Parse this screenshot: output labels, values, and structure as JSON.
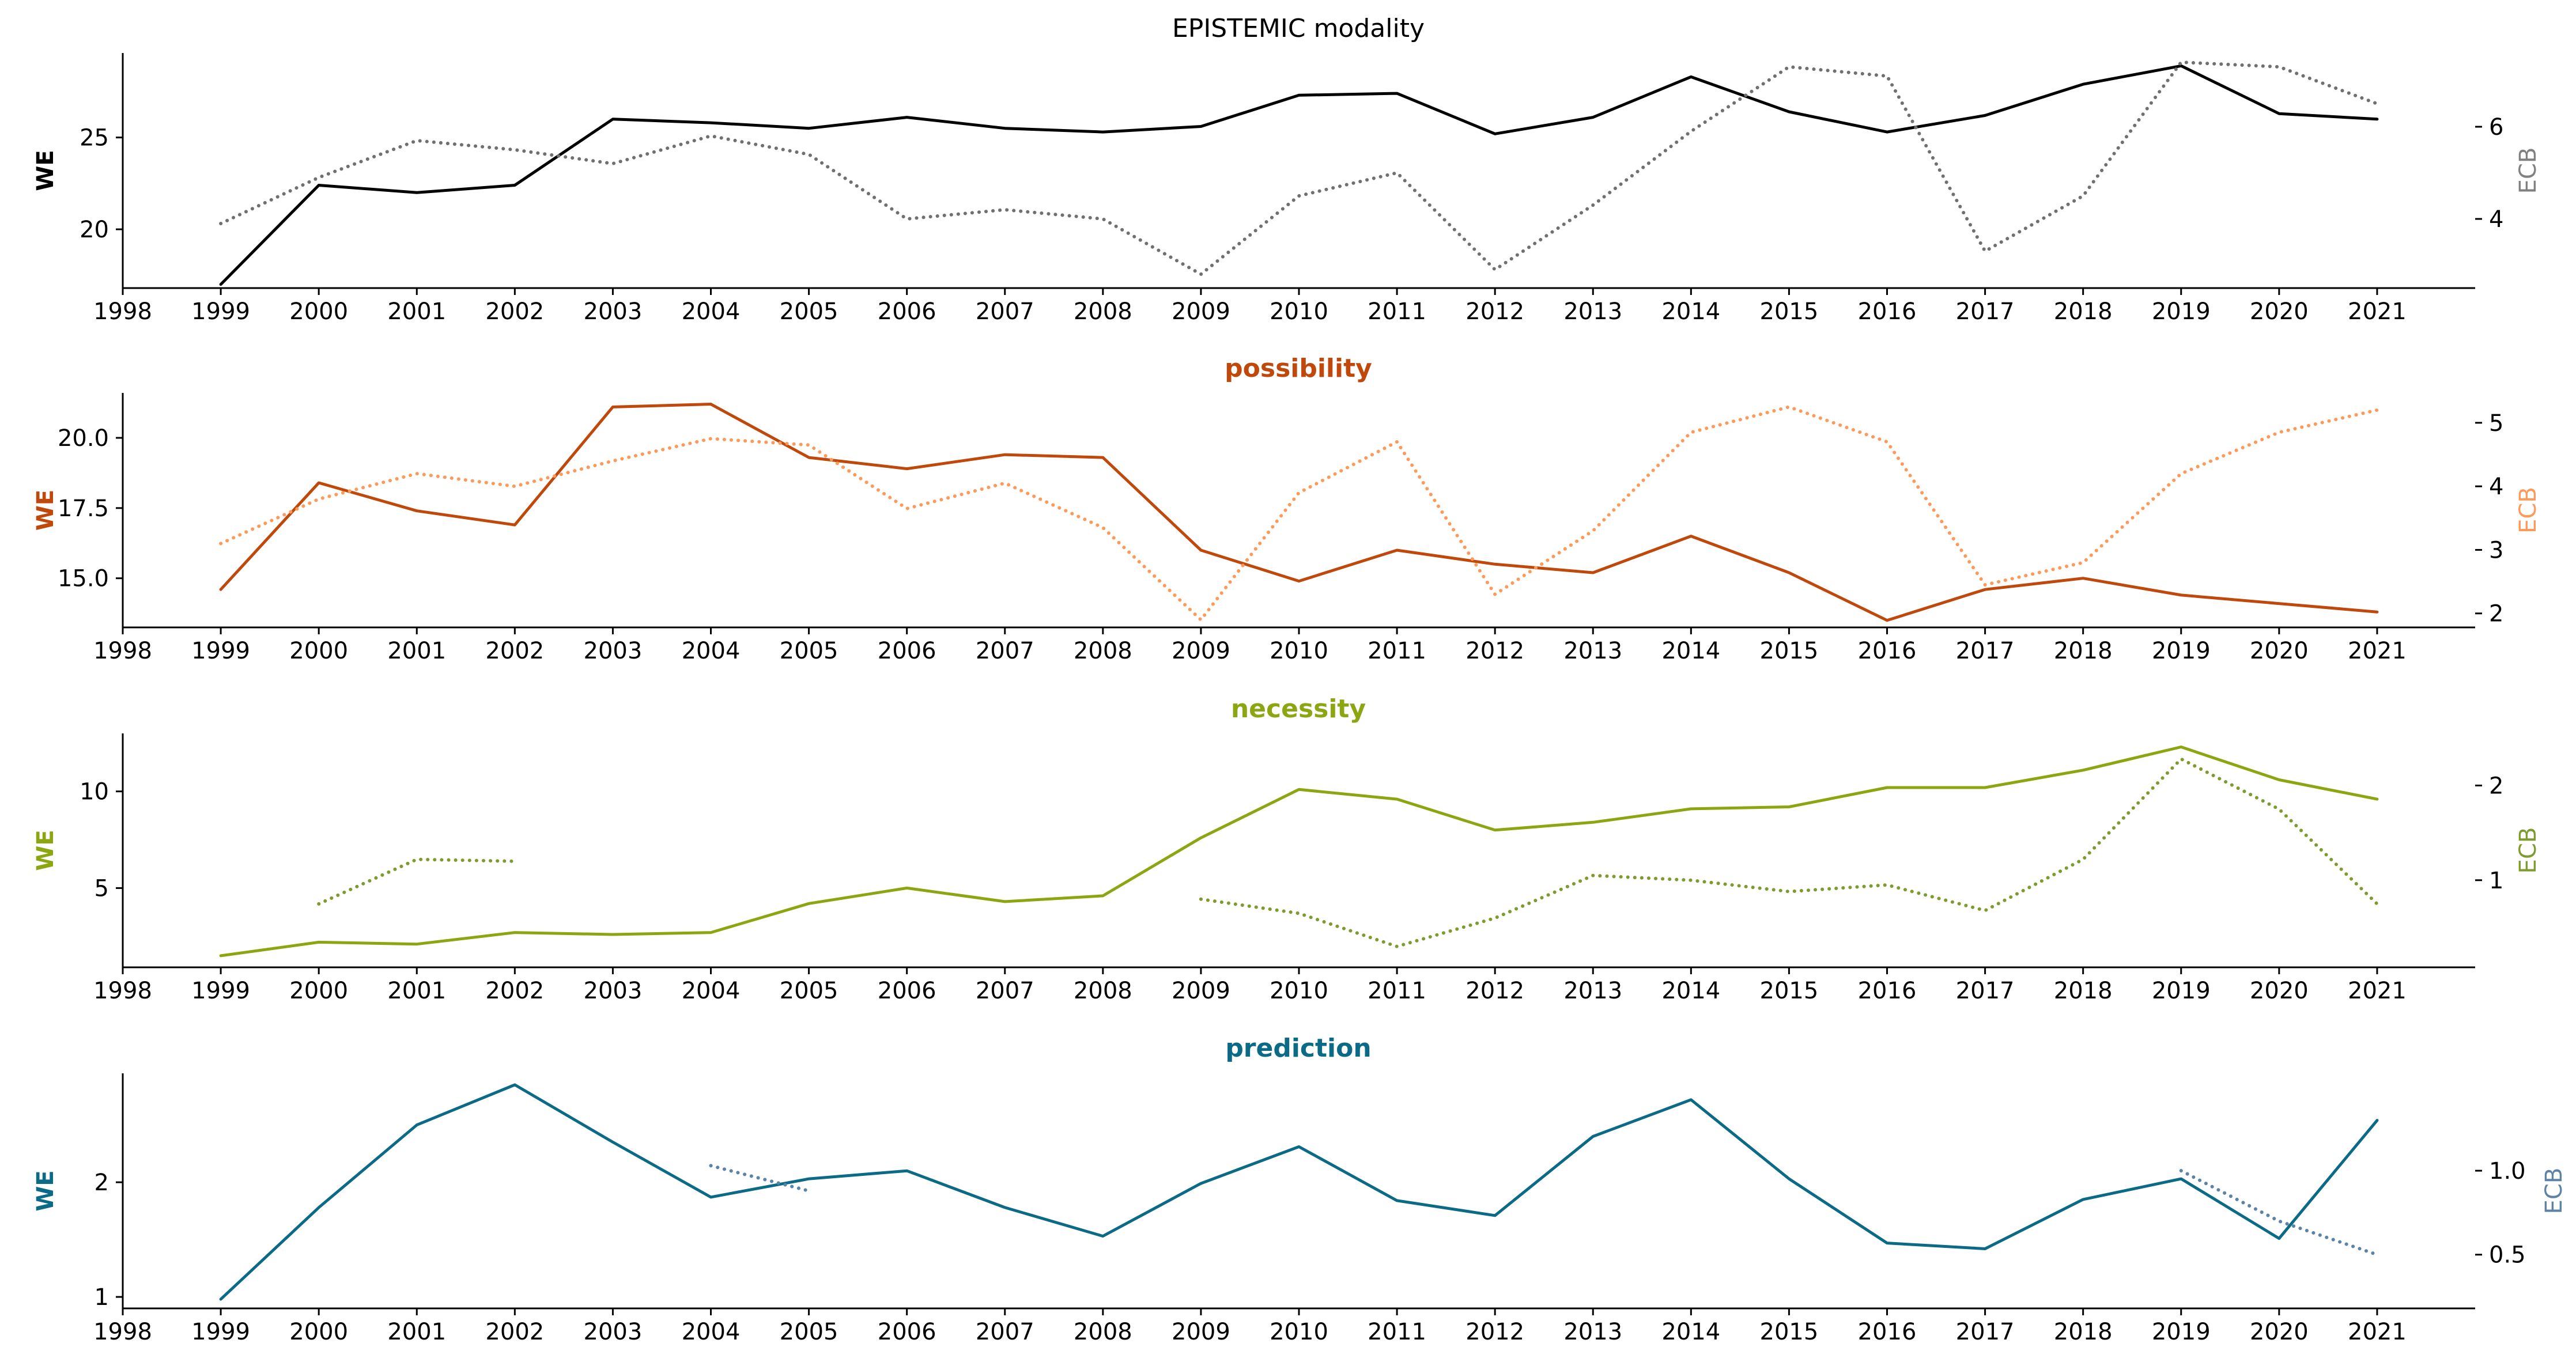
{
  "figure_title": "EPISTEMIC modality",
  "x_years": [
    "1998",
    "1999",
    "2000",
    "2001",
    "2002",
    "2003",
    "2004",
    "2005",
    "2006",
    "2007",
    "2008",
    "2009",
    "2010",
    "2011",
    "2012",
    "2013",
    "2014",
    "2015",
    "2016",
    "2017",
    "2018",
    "2019",
    "2020",
    "2021"
  ],
  "chart_data": [
    {
      "type": "line",
      "title": "EPISTEMIC modality",
      "xlabel": "",
      "ylabel": "WE",
      "y2label": "ECB",
      "x": [
        1999,
        2000,
        2001,
        2002,
        2003,
        2004,
        2005,
        2006,
        2007,
        2008,
        2009,
        2010,
        2011,
        2012,
        2013,
        2014,
        2015,
        2016,
        2017,
        2018,
        2019,
        2020,
        2021
      ],
      "xlim": [
        1998,
        2022
      ],
      "ylim": [
        16.8,
        29.6
      ],
      "y2lim": [
        2.5,
        7.6
      ],
      "yticks": [
        20,
        25
      ],
      "y2ticks": [
        4,
        6
      ],
      "colors": {
        "we": "#000000",
        "ecb": "#707070",
        "title": "#000000",
        "ylabel": "#000000",
        "y2label": "#808080"
      },
      "title_bold": false,
      "series": [
        {
          "name": "WE",
          "axis": "left",
          "style": "solid",
          "values": [
            17.0,
            22.4,
            22.0,
            22.4,
            26.0,
            25.8,
            25.5,
            26.1,
            25.5,
            25.3,
            25.6,
            27.3,
            27.4,
            25.2,
            26.1,
            28.3,
            26.4,
            25.3,
            26.2,
            27.9,
            28.9,
            26.3,
            26.0
          ]
        },
        {
          "name": "ECB",
          "axis": "right",
          "style": "dotted",
          "values": [
            3.9,
            4.9,
            5.7,
            5.5,
            5.2,
            5.8,
            5.4,
            4.0,
            4.2,
            4.0,
            2.8,
            4.5,
            5.0,
            2.9,
            4.3,
            5.9,
            7.3,
            7.1,
            3.3,
            4.5,
            7.4,
            7.3,
            6.5
          ]
        }
      ]
    },
    {
      "type": "line",
      "title": "possibility",
      "xlabel": "",
      "ylabel": "WE",
      "y2label": "ECB",
      "x": [
        1999,
        2000,
        2001,
        2002,
        2003,
        2004,
        2005,
        2006,
        2007,
        2008,
        2009,
        2010,
        2011,
        2012,
        2013,
        2014,
        2015,
        2016,
        2017,
        2018,
        2019,
        2020,
        2021
      ],
      "xlim": [
        1998,
        2022
      ],
      "ylim": [
        13.25,
        21.6
      ],
      "y2lim": [
        1.78,
        5.47
      ],
      "yticks": [
        15.0,
        17.5,
        20.0
      ],
      "y2ticks": [
        2,
        3,
        4,
        5
      ],
      "colors": {
        "we": "#c0480a",
        "ecb": "#fd9a5a",
        "title": "#c0480a",
        "ylabel": "#c0480a",
        "y2label": "#fd9a5a"
      },
      "title_bold": true,
      "series": [
        {
          "name": "WE",
          "axis": "left",
          "style": "solid",
          "values": [
            14.6,
            18.4,
            17.4,
            16.9,
            21.1,
            21.2,
            19.3,
            18.9,
            19.4,
            19.3,
            16.0,
            14.9,
            16.0,
            15.5,
            15.2,
            16.5,
            15.2,
            13.5,
            14.6,
            15.0,
            14.4,
            14.1,
            13.8
          ]
        },
        {
          "name": "ECB",
          "axis": "right",
          "style": "dotted",
          "values": [
            3.1,
            3.8,
            4.2,
            4.0,
            4.4,
            4.75,
            4.65,
            3.65,
            4.05,
            3.35,
            1.9,
            3.9,
            4.7,
            2.3,
            3.3,
            4.85,
            5.25,
            4.7,
            2.45,
            2.8,
            4.2,
            4.85,
            5.2
          ]
        }
      ]
    },
    {
      "type": "line",
      "title": "necessity",
      "xlabel": "",
      "ylabel": "WE",
      "y2label": "ECB",
      "x": [
        1999,
        2000,
        2001,
        2002,
        2003,
        2004,
        2005,
        2006,
        2007,
        2008,
        2009,
        2010,
        2011,
        2012,
        2013,
        2014,
        2015,
        2016,
        2017,
        2018,
        2019,
        2020,
        2021
      ],
      "xlim": [
        1998,
        2022
      ],
      "ylim": [
        0.9,
        13.0
      ],
      "y2lim": [
        0.08,
        2.55
      ],
      "yticks": [
        5,
        10
      ],
      "y2ticks": [
        1,
        2
      ],
      "colors": {
        "we": "#8ca612",
        "ecb": "#7e9b2e",
        "title": "#8ca612",
        "ylabel": "#8ca612",
        "y2label": "#7e9b2e"
      },
      "title_bold": true,
      "series": [
        {
          "name": "WE",
          "axis": "left",
          "style": "solid",
          "values": [
            1.5,
            2.2,
            2.1,
            2.7,
            2.6,
            2.7,
            4.2,
            5.0,
            4.3,
            4.6,
            7.6,
            10.1,
            9.6,
            8.0,
            8.4,
            9.1,
            9.2,
            10.2,
            10.2,
            11.1,
            12.3,
            10.6,
            9.6
          ]
        },
        {
          "name": "ECB",
          "axis": "right",
          "style": "dotted",
          "values": [
            null,
            0.75,
            1.22,
            1.2,
            null,
            null,
            null,
            null,
            null,
            null,
            0.8,
            0.65,
            0.3,
            0.6,
            1.05,
            1.0,
            0.88,
            0.95,
            0.68,
            1.22,
            2.28,
            1.75,
            0.75
          ]
        }
      ]
    },
    {
      "type": "line",
      "title": "prediction",
      "xlabel": "",
      "ylabel": "WE",
      "y2label": "ECB",
      "x": [
        1999,
        2000,
        2001,
        2002,
        2003,
        2004,
        2005,
        2006,
        2007,
        2008,
        2009,
        2010,
        2011,
        2012,
        2013,
        2014,
        2015,
        2016,
        2017,
        2018,
        2019,
        2020,
        2021
      ],
      "xlim": [
        1998,
        2022
      ],
      "ylim": [
        0.9,
        2.95
      ],
      "y2lim": [
        0.18,
        1.58
      ],
      "yticks": [
        1,
        2
      ],
      "y2ticks": [
        0.5,
        1.0
      ],
      "colors": {
        "we": "#0b6a86",
        "ecb": "#5b83a8",
        "title": "#0b6a86",
        "ylabel": "#0b6a86",
        "y2label": "#5b83a8"
      },
      "title_bold": true,
      "series": [
        {
          "name": "WE",
          "axis": "left",
          "style": "solid",
          "values": [
            0.98,
            1.78,
            2.5,
            2.85,
            2.35,
            1.87,
            2.03,
            2.1,
            1.78,
            1.53,
            1.99,
            2.31,
            1.84,
            1.71,
            2.4,
            2.72,
            2.03,
            1.47,
            1.42,
            1.85,
            2.03,
            1.51,
            2.54
          ]
        },
        {
          "name": "ECB",
          "axis": "right",
          "style": "dotted",
          "values": [
            null,
            null,
            null,
            null,
            null,
            1.03,
            0.88,
            null,
            null,
            null,
            null,
            null,
            null,
            null,
            null,
            null,
            null,
            null,
            null,
            null,
            1.0,
            0.7,
            0.5
          ]
        }
      ]
    }
  ]
}
